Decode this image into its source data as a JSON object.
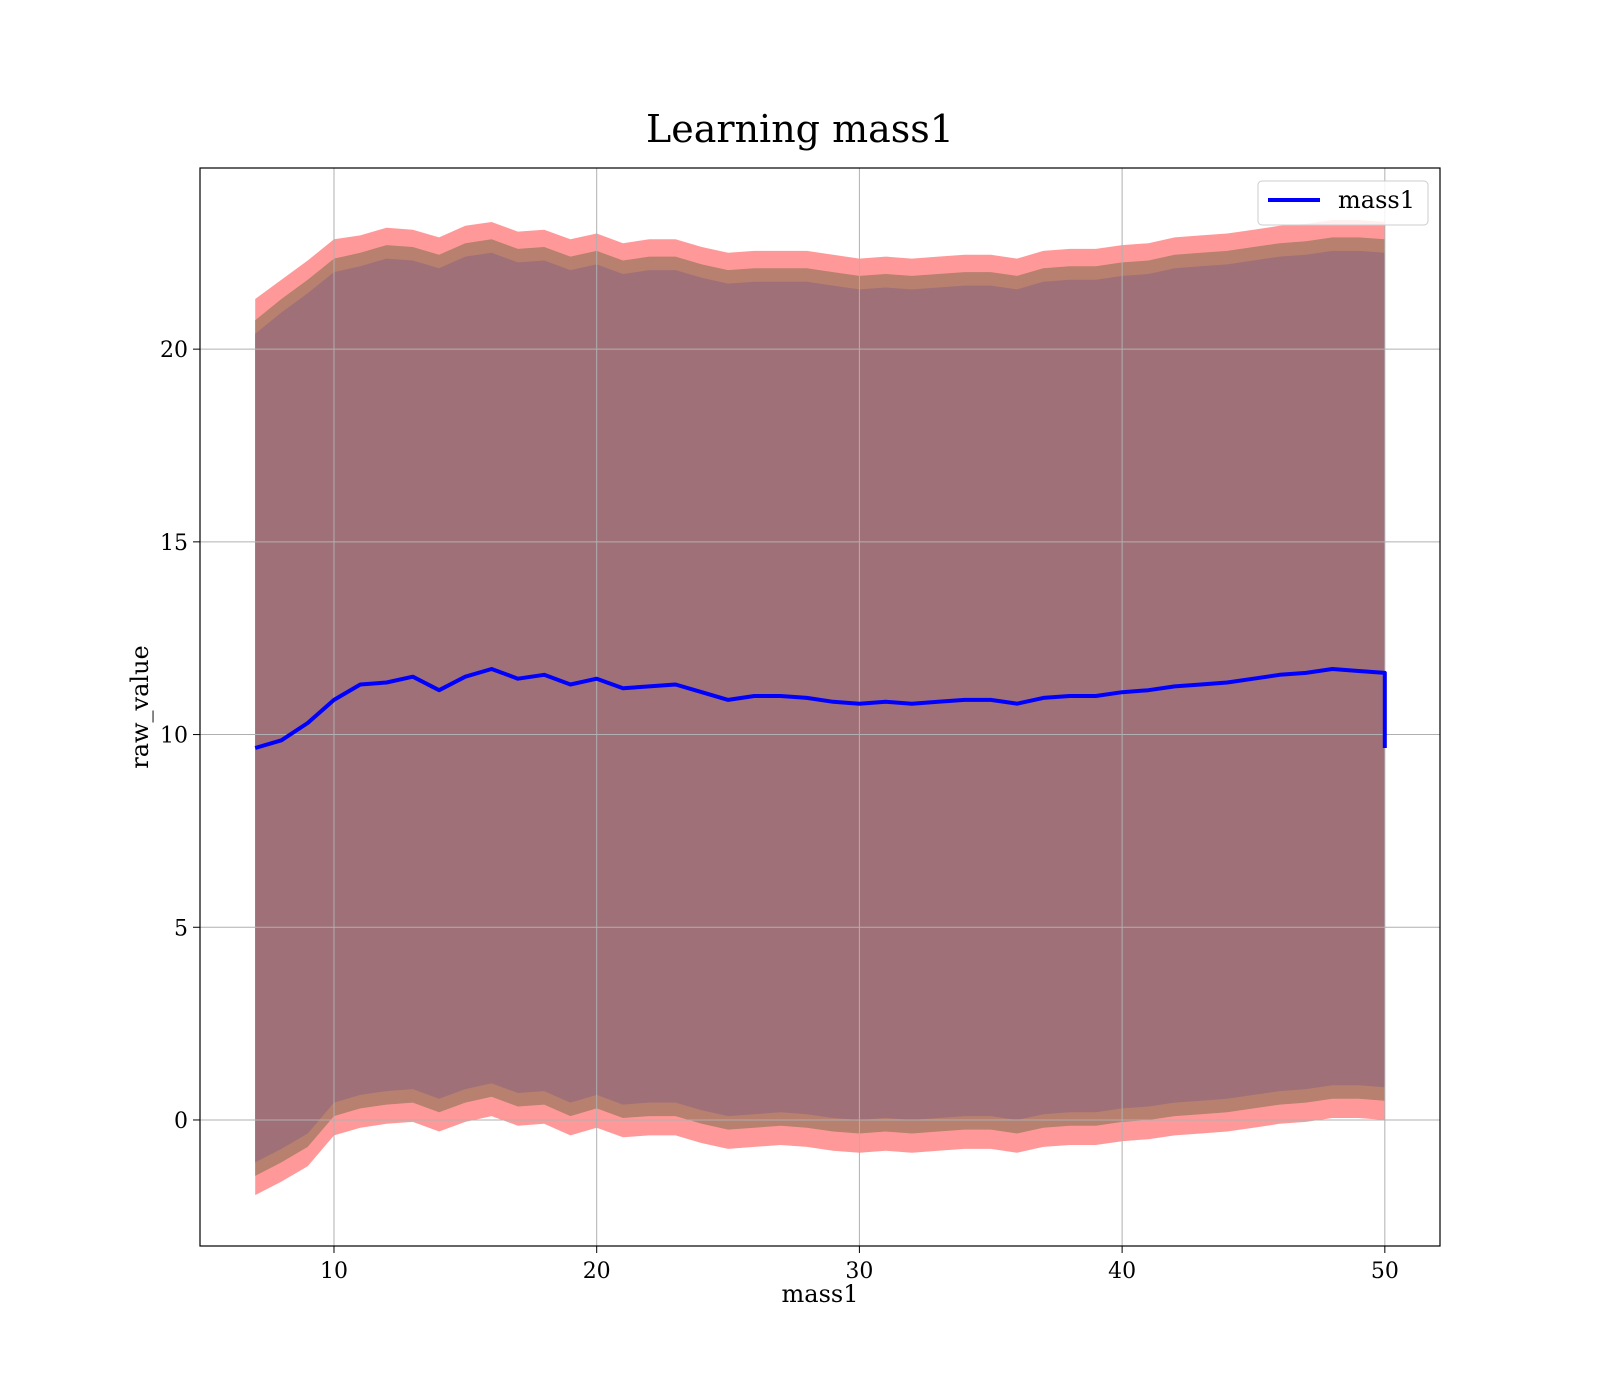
{
  "chart_data": {
    "type": "line",
    "title": "Learning mass1",
    "xlabel": "mass1",
    "ylabel": "raw_value",
    "xlim": [
      4.9,
      52.1
    ],
    "ylim": [
      -3.27,
      24.7
    ],
    "xticks": [
      10,
      20,
      30,
      40,
      50
    ],
    "yticks": [
      0,
      5,
      10,
      15,
      20
    ],
    "grid": true,
    "legend_position": "top-right",
    "colors": {
      "line": "#0000ff",
      "outer_band": "#ff9999",
      "middle_band": "#b8806e",
      "inner_band": "#a07078",
      "grid": "#b0b0b0"
    },
    "series": [
      {
        "name": "mass1",
        "x": [
          7.0,
          8.0,
          9.0,
          10.0,
          11.0,
          12.0,
          13.0,
          14.0,
          15.0,
          16.0,
          17.0,
          18.0,
          19.0,
          20.0,
          21.0,
          22.0,
          23.0,
          24.0,
          25.0,
          26.0,
          27.0,
          28.0,
          29.0,
          30.0,
          31.0,
          32.0,
          33.0,
          34.0,
          35.0,
          36.0,
          37.0,
          38.0,
          39.0,
          40.0,
          41.0,
          42.0,
          43.0,
          44.0,
          45.0,
          46.0,
          47.0,
          48.0,
          49.0,
          50.0
        ],
        "y": [
          9.65,
          9.85,
          10.3,
          10.9,
          11.3,
          11.35,
          11.5,
          11.15,
          11.5,
          11.7,
          11.45,
          11.55,
          11.3,
          11.45,
          11.2,
          11.25,
          11.3,
          11.1,
          10.9,
          11.0,
          11.0,
          10.95,
          10.85,
          10.8,
          10.85,
          10.8,
          10.85,
          10.9,
          10.9,
          10.8,
          10.95,
          11.0,
          11.0,
          11.1,
          11.15,
          11.25,
          11.3,
          11.35,
          11.45,
          11.55,
          11.6,
          11.7,
          11.65,
          11.6
        ]
      }
    ],
    "end_drop_y": 9.65,
    "bands": [
      {
        "name": "outer",
        "upper": [
          21.3,
          21.8,
          22.3,
          22.85,
          22.95,
          23.15,
          23.1,
          22.9,
          23.2,
          23.3,
          23.05,
          23.1,
          22.85,
          23.0,
          22.75,
          22.85,
          22.85,
          22.65,
          22.5,
          22.55,
          22.55,
          22.55,
          22.45,
          22.35,
          22.4,
          22.35,
          22.4,
          22.45,
          22.45,
          22.35,
          22.55,
          22.6,
          22.6,
          22.7,
          22.75,
          22.9,
          22.95,
          23.0,
          23.1,
          23.2,
          23.25,
          23.35,
          23.35,
          23.3
        ],
        "lower": [
          -1.95,
          -1.6,
          -1.2,
          -0.4,
          -0.2,
          -0.1,
          -0.05,
          -0.3,
          -0.05,
          0.1,
          -0.15,
          -0.1,
          -0.4,
          -0.2,
          -0.45,
          -0.4,
          -0.4,
          -0.6,
          -0.75,
          -0.7,
          -0.65,
          -0.7,
          -0.8,
          -0.85,
          -0.8,
          -0.85,
          -0.8,
          -0.75,
          -0.75,
          -0.85,
          -0.7,
          -0.65,
          -0.65,
          -0.55,
          -0.5,
          -0.4,
          -0.35,
          -0.3,
          -0.2,
          -0.1,
          -0.05,
          0.05,
          0.05,
          0.0
        ]
      },
      {
        "name": "middle",
        "upper": [
          20.75,
          21.3,
          21.8,
          22.35,
          22.5,
          22.7,
          22.65,
          22.45,
          22.75,
          22.85,
          22.6,
          22.65,
          22.4,
          22.55,
          22.3,
          22.4,
          22.4,
          22.2,
          22.05,
          22.1,
          22.1,
          22.1,
          22.0,
          21.9,
          21.95,
          21.9,
          21.95,
          22.0,
          22.0,
          21.9,
          22.1,
          22.15,
          22.15,
          22.25,
          22.3,
          22.45,
          22.5,
          22.55,
          22.65,
          22.75,
          22.8,
          22.9,
          22.9,
          22.85
        ],
        "lower": [
          -1.45,
          -1.1,
          -0.7,
          0.1,
          0.3,
          0.4,
          0.45,
          0.2,
          0.45,
          0.6,
          0.35,
          0.4,
          0.1,
          0.3,
          0.05,
          0.1,
          0.1,
          -0.1,
          -0.25,
          -0.2,
          -0.15,
          -0.2,
          -0.3,
          -0.35,
          -0.3,
          -0.35,
          -0.3,
          -0.25,
          -0.25,
          -0.35,
          -0.2,
          -0.15,
          -0.15,
          -0.05,
          0.0,
          0.1,
          0.15,
          0.2,
          0.3,
          0.4,
          0.45,
          0.55,
          0.55,
          0.5
        ]
      },
      {
        "name": "inner",
        "upper": [
          20.4,
          20.95,
          21.45,
          22.0,
          22.15,
          22.35,
          22.3,
          22.1,
          22.4,
          22.5,
          22.25,
          22.3,
          22.05,
          22.2,
          21.95,
          22.05,
          22.05,
          21.85,
          21.7,
          21.75,
          21.75,
          21.75,
          21.65,
          21.55,
          21.6,
          21.55,
          21.6,
          21.65,
          21.65,
          21.55,
          21.75,
          21.8,
          21.8,
          21.9,
          21.95,
          22.1,
          22.15,
          22.2,
          22.3,
          22.4,
          22.45,
          22.55,
          22.55,
          22.5
        ],
        "lower": [
          -1.1,
          -0.75,
          -0.35,
          0.45,
          0.65,
          0.75,
          0.8,
          0.55,
          0.8,
          0.95,
          0.7,
          0.75,
          0.45,
          0.65,
          0.4,
          0.45,
          0.45,
          0.25,
          0.1,
          0.15,
          0.2,
          0.15,
          0.05,
          0.0,
          0.05,
          0.0,
          0.05,
          0.1,
          0.1,
          0.0,
          0.15,
          0.2,
          0.2,
          0.3,
          0.35,
          0.45,
          0.5,
          0.55,
          0.65,
          0.75,
          0.8,
          0.9,
          0.9,
          0.85
        ]
      }
    ]
  }
}
